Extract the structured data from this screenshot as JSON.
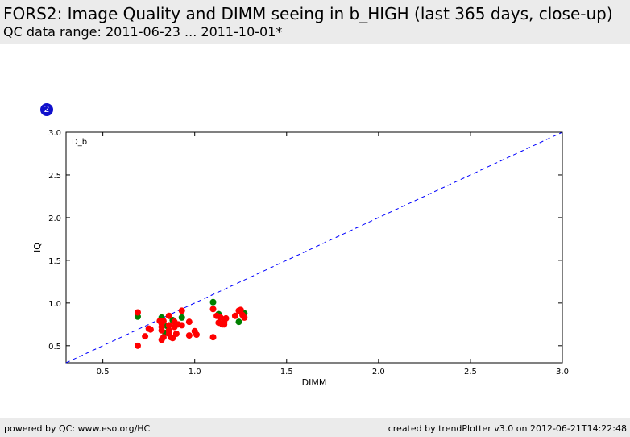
{
  "header": {
    "title": "FORS2: Image Quality and DIMM seeing in b_HIGH (last 365 days, close-up)",
    "subtitle": "QC data range: 2011-06-23 ... 2011-10-01*"
  },
  "badge": {
    "label": "2"
  },
  "footer": {
    "left": "powered by QC: www.eso.org/HC",
    "right": "created by trendPlotter v3.0 on 2012-06-21T14:22:48"
  },
  "colors": {
    "red_series": "#ff0000",
    "green_series": "#008000",
    "reference_line": "#0000ff",
    "badge": "#1010cc",
    "header_bg": "#ebebeb"
  },
  "chart_data": {
    "type": "scatter",
    "panel_label": "D_b",
    "xlabel": "DIMM",
    "ylabel": "IQ",
    "xlim": [
      0.3,
      3.0
    ],
    "ylim": [
      0.3,
      3.0
    ],
    "xticks": [
      "0.5",
      "1.0",
      "1.5",
      "2.0",
      "2.5",
      "3.0"
    ],
    "yticks": [
      "0.5",
      "1.0",
      "1.5",
      "2.0",
      "2.5",
      "3.0"
    ],
    "grid": false,
    "reference_line": {
      "style": "dashed",
      "from": [
        0.3,
        0.3
      ],
      "to": [
        3.0,
        3.0
      ]
    },
    "series": [
      {
        "color": "#008000",
        "points": [
          [
            0.69,
            0.84
          ],
          [
            0.82,
            0.83
          ],
          [
            0.88,
            0.8
          ],
          [
            0.93,
            0.83
          ],
          [
            1.1,
            1.01
          ],
          [
            1.13,
            0.87
          ],
          [
            1.24,
            0.78
          ],
          [
            1.27,
            0.88
          ],
          [
            0.85,
            0.73
          ],
          [
            0.84,
            0.65
          ]
        ]
      },
      {
        "color": "#ff0000",
        "points": [
          [
            0.69,
            0.89
          ],
          [
            0.69,
            0.5
          ],
          [
            0.73,
            0.61
          ],
          [
            0.75,
            0.7
          ],
          [
            0.76,
            0.69
          ],
          [
            0.81,
            0.79
          ],
          [
            0.82,
            0.76
          ],
          [
            0.82,
            0.72
          ],
          [
            0.82,
            0.68
          ],
          [
            0.83,
            0.6
          ],
          [
            0.82,
            0.57
          ],
          [
            0.83,
            0.79
          ],
          [
            0.86,
            0.85
          ],
          [
            0.86,
            0.74
          ],
          [
            0.86,
            0.68
          ],
          [
            0.86,
            0.64
          ],
          [
            0.87,
            0.6
          ],
          [
            0.88,
            0.59
          ],
          [
            0.89,
            0.78
          ],
          [
            0.89,
            0.72
          ],
          [
            0.9,
            0.64
          ],
          [
            0.91,
            0.75
          ],
          [
            0.93,
            0.91
          ],
          [
            0.93,
            0.74
          ],
          [
            0.97,
            0.78
          ],
          [
            0.97,
            0.62
          ],
          [
            1.0,
            0.67
          ],
          [
            1.01,
            0.63
          ],
          [
            1.1,
            0.93
          ],
          [
            1.1,
            0.6
          ],
          [
            1.12,
            0.85
          ],
          [
            1.13,
            0.77
          ],
          [
            1.14,
            0.83
          ],
          [
            1.15,
            0.75
          ],
          [
            1.16,
            0.78
          ],
          [
            1.16,
            0.75
          ],
          [
            1.17,
            0.82
          ],
          [
            1.22,
            0.85
          ],
          [
            1.24,
            0.91
          ],
          [
            1.25,
            0.92
          ],
          [
            1.26,
            0.86
          ],
          [
            1.27,
            0.83
          ]
        ]
      }
    ]
  }
}
